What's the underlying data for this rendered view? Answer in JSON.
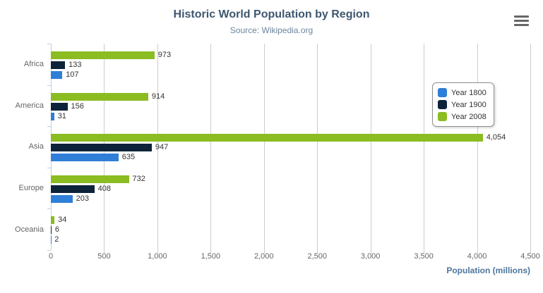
{
  "header": {
    "title": "Historic World Population by Region",
    "subtitle": "Source: Wikipedia.org",
    "menu_icon": "hamburger-menu-icon"
  },
  "chart_data": {
    "type": "bar",
    "orientation": "horizontal",
    "title": "Historic World Population by Region",
    "subtitle": "Source: Wikipedia.org",
    "categories": [
      "Africa",
      "America",
      "Asia",
      "Europe",
      "Oceania"
    ],
    "series": [
      {
        "name": "Year 1800",
        "color": "#2f7ed8",
        "values": [
          107,
          31,
          635,
          203,
          2
        ],
        "labels": [
          "107",
          "31",
          "635",
          "203",
          "2"
        ]
      },
      {
        "name": "Year 1900",
        "color": "#0d233a",
        "values": [
          133,
          156,
          947,
          408,
          6
        ],
        "labels": [
          "133",
          "156",
          "947",
          "408",
          "6"
        ]
      },
      {
        "name": "Year 2008",
        "color": "#8bbc21",
        "values": [
          973,
          914,
          4054,
          732,
          34
        ],
        "labels": [
          "973",
          "914",
          "4,054",
          "732",
          "34"
        ]
      }
    ],
    "bar_display_order_top_to_bottom": [
      "Year 2008",
      "Year 1900",
      "Year 1800"
    ],
    "xlabel": "Population (millions)",
    "xlim": [
      0,
      4500
    ],
    "tick_interval": 500,
    "x_ticks": [
      "0",
      "500",
      "1,000",
      "1,500",
      "2,000",
      "2,500",
      "3,000",
      "3,500",
      "4,000",
      "4,500"
    ],
    "grid": true,
    "legend_position": "right",
    "legend": [
      "Year 1800",
      "Year 1900",
      "Year 2008"
    ]
  },
  "colors": {
    "title": "#3e576f",
    "subtitle": "#6d869f",
    "axis_title": "#4d759e",
    "tick_label": "#666666",
    "data_label": "#333333",
    "gridline": "#cccccc",
    "value_axis_line": "#c0d0e0",
    "legend_border": "#909090",
    "series_blue": "#2f7ed8",
    "series_navy": "#0d233a",
    "series_green": "#8bbc21"
  }
}
